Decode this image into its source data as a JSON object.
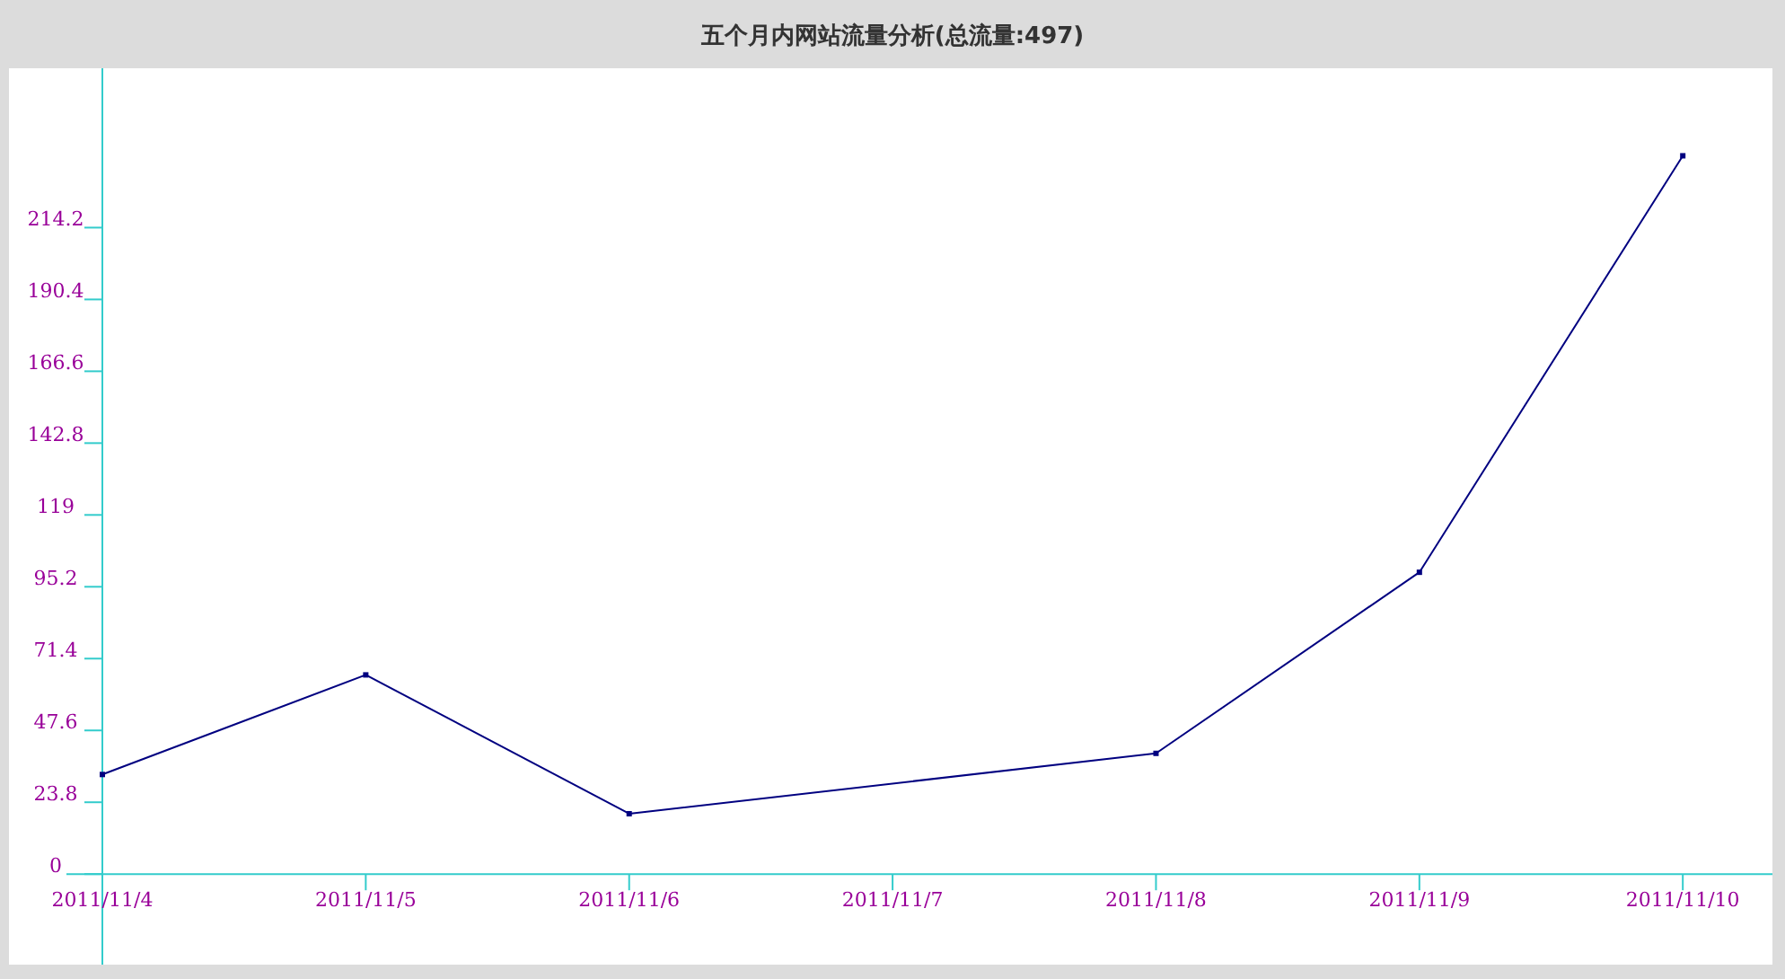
{
  "chart_data": {
    "type": "line",
    "title": "五个月内网站流量分析(总流量:497)",
    "x": [
      "2011-11-04",
      "2011-11-05",
      "2011-11-06",
      "2011-11-08",
      "2011-11-09",
      "2011-11-10"
    ],
    "series": [
      {
        "color": "#000080",
        "values": [
          33,
          66,
          20,
          40,
          100,
          238
        ]
      }
    ],
    "xlim": [
      "2011-11-04",
      "2011-11-10T08:10"
    ],
    "xticks": [
      {
        "value": "2011-11-04",
        "label": "2011/11/4"
      },
      {
        "value": "2011-11-05",
        "label": "2011/11/5"
      },
      {
        "value": "2011-11-06",
        "label": "2011/11/6"
      },
      {
        "value": "2011-11-07",
        "label": "2011/11/7"
      },
      {
        "value": "2011-11-08",
        "label": "2011/11/8"
      },
      {
        "value": "2011-11-09",
        "label": "2011/11/9"
      },
      {
        "value": "2011-11-10",
        "label": "2011/11/10"
      }
    ],
    "ylim": [
      -30,
      267
    ],
    "yticks": [
      0,
      23.8,
      47.6,
      71.4,
      95.2,
      119,
      142.8,
      166.6,
      190.4,
      214.2
    ],
    "grid": false,
    "marker": "square",
    "line_style": "solid"
  }
}
